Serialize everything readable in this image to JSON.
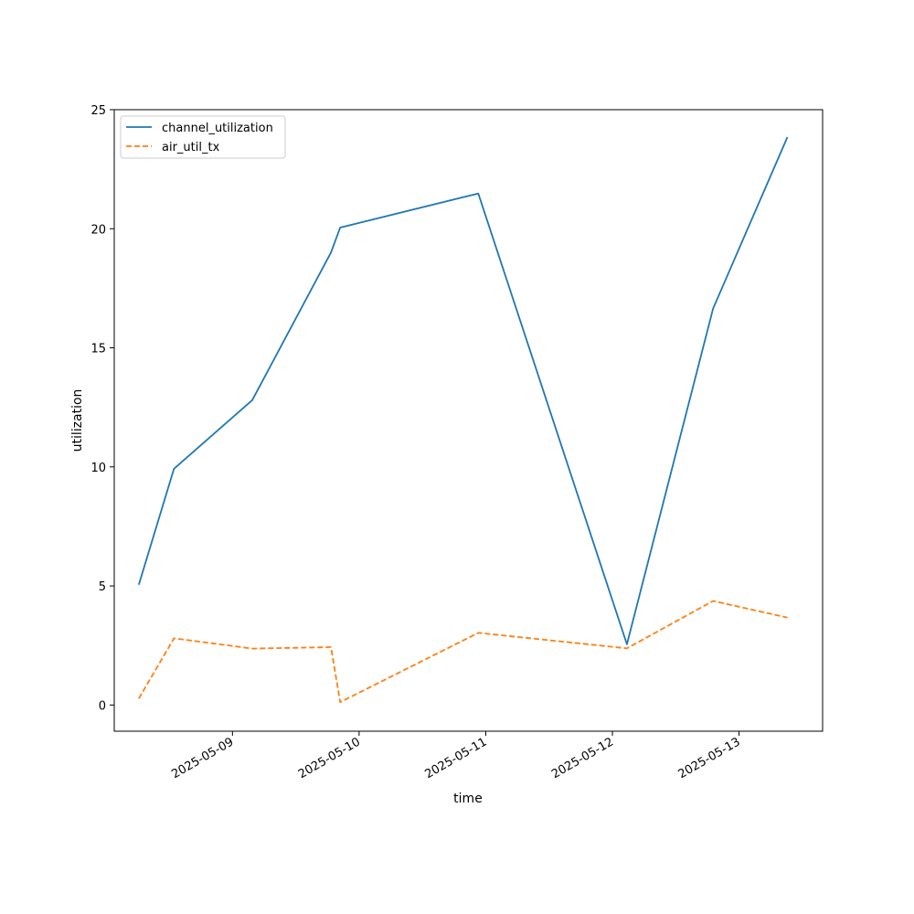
{
  "chart_data": {
    "type": "line",
    "title": "",
    "xlabel": "time",
    "ylabel": "utilization",
    "x_tick_labels": [
      "2025-05-09",
      "2025-05-10",
      "2025-05-11",
      "2025-05-12",
      "2025-05-13"
    ],
    "y_tick_labels": [
      "0",
      "5",
      "10",
      "15",
      "20",
      "25"
    ],
    "xlim": [
      "2025-05-08 01:36",
      "2025-05-13 15:50"
    ],
    "ylim": [
      -1.1,
      25
    ],
    "grid": false,
    "legend_position": "upper-left",
    "series": [
      {
        "name": "channel_utilization",
        "color": "#1f77b4",
        "style": "solid",
        "points": [
          {
            "x": "2025-05-08 06:15",
            "y": 5.05
          },
          {
            "x": "2025-05-08 12:55",
            "y": 9.92
          },
          {
            "x": "2025-05-09 03:45",
            "y": 12.8
          },
          {
            "x": "2025-05-09 18:40",
            "y": 19.0
          },
          {
            "x": "2025-05-09 20:25",
            "y": 20.05
          },
          {
            "x": "2025-05-10 22:35",
            "y": 21.48
          },
          {
            "x": "2025-05-12 02:45",
            "y": 2.55
          },
          {
            "x": "2025-05-12 19:05",
            "y": 16.65
          },
          {
            "x": "2025-05-13 09:10",
            "y": 23.85
          }
        ]
      },
      {
        "name": "air_util_tx",
        "color": "#ff7f0e",
        "style": "dashed",
        "points": [
          {
            "x": "2025-05-08 06:15",
            "y": 0.27
          },
          {
            "x": "2025-05-08 12:55",
            "y": 2.8
          },
          {
            "x": "2025-05-09 03:45",
            "y": 2.37
          },
          {
            "x": "2025-05-09 18:40",
            "y": 2.43
          },
          {
            "x": "2025-05-09 20:25",
            "y": 0.12
          },
          {
            "x": "2025-05-10 22:35",
            "y": 3.03
          },
          {
            "x": "2025-05-12 02:45",
            "y": 2.38
          },
          {
            "x": "2025-05-12 19:05",
            "y": 4.37
          },
          {
            "x": "2025-05-13 09:10",
            "y": 3.67
          }
        ]
      }
    ]
  }
}
